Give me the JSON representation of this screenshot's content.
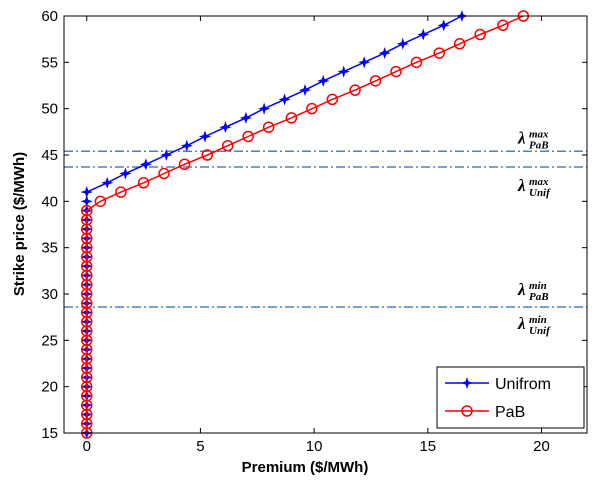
{
  "chart_data": {
    "type": "line",
    "xlabel": "Premium ($/MWh)",
    "ylabel": "Strike price ($/MWh)",
    "xlim": [
      -1,
      22
    ],
    "ylim": [
      15,
      60
    ],
    "xticks": [
      0,
      5,
      10,
      15,
      20
    ],
    "yticks": [
      15,
      20,
      25,
      30,
      35,
      40,
      45,
      50,
      55,
      60
    ],
    "legend": "lower right",
    "series": [
      {
        "name": "Unifrom",
        "color": "#0000ff",
        "marker": "star",
        "x": [
          0,
          0,
          0,
          0,
          0,
          0,
          0,
          0,
          0,
          0,
          0,
          0,
          0,
          0,
          0,
          0,
          0,
          0,
          0,
          0,
          0,
          0,
          0,
          0,
          0,
          0,
          0,
          0.9,
          1.7,
          2.6,
          3.5,
          4.4,
          5.2,
          6.1,
          7.0,
          7.8,
          8.7,
          9.6,
          10.4,
          11.3,
          12.2,
          13.1,
          13.9,
          14.8,
          15.7,
          16.5
        ],
        "values": [
          15,
          16,
          17,
          18,
          19,
          20,
          21,
          22,
          23,
          24,
          25,
          26,
          27,
          28,
          29,
          30,
          31,
          32,
          33,
          34,
          35,
          36,
          37,
          38,
          39,
          40,
          41,
          42,
          43,
          44,
          45,
          46,
          47,
          48,
          49,
          50,
          51,
          52,
          53,
          54,
          55,
          56,
          57,
          58,
          59,
          60
        ]
      },
      {
        "name": "PaB",
        "color": "#ff0000",
        "marker": "circle",
        "x": [
          0,
          0,
          0,
          0,
          0,
          0,
          0,
          0,
          0,
          0,
          0,
          0,
          0,
          0,
          0,
          0,
          0,
          0,
          0,
          0,
          0,
          0,
          0,
          0,
          0,
          0.6,
          1.5,
          2.5,
          3.4,
          4.3,
          5.3,
          6.2,
          7.1,
          8.0,
          9.0,
          9.9,
          10.8,
          11.8,
          12.7,
          13.6,
          14.5,
          15.5,
          16.4,
          17.3,
          18.3,
          19.2
        ],
        "values": [
          15,
          16,
          17,
          18,
          19,
          20,
          21,
          22,
          23,
          24,
          25,
          26,
          27,
          28,
          29,
          30,
          31,
          32,
          33,
          34,
          35,
          36,
          37,
          38,
          39,
          40,
          41,
          42,
          43,
          44,
          45,
          46,
          47,
          48,
          49,
          50,
          51,
          52,
          53,
          54,
          55,
          56,
          57,
          58,
          59,
          60
        ]
      }
    ],
    "hlines": {
      "color": "#4f81bd",
      "values": [
        45.4,
        43.7,
        28.6
      ]
    },
    "annotations": [
      {
        "text": "λ",
        "sup": "max",
        "sub": "PaB"
      },
      {
        "text": "λ",
        "sup": "max",
        "sub": "Unif"
      },
      {
        "text": "λ",
        "sup": "min",
        "sub": "PaB"
      },
      {
        "text": "λ",
        "sup": "min",
        "sub": "Unif"
      }
    ]
  }
}
